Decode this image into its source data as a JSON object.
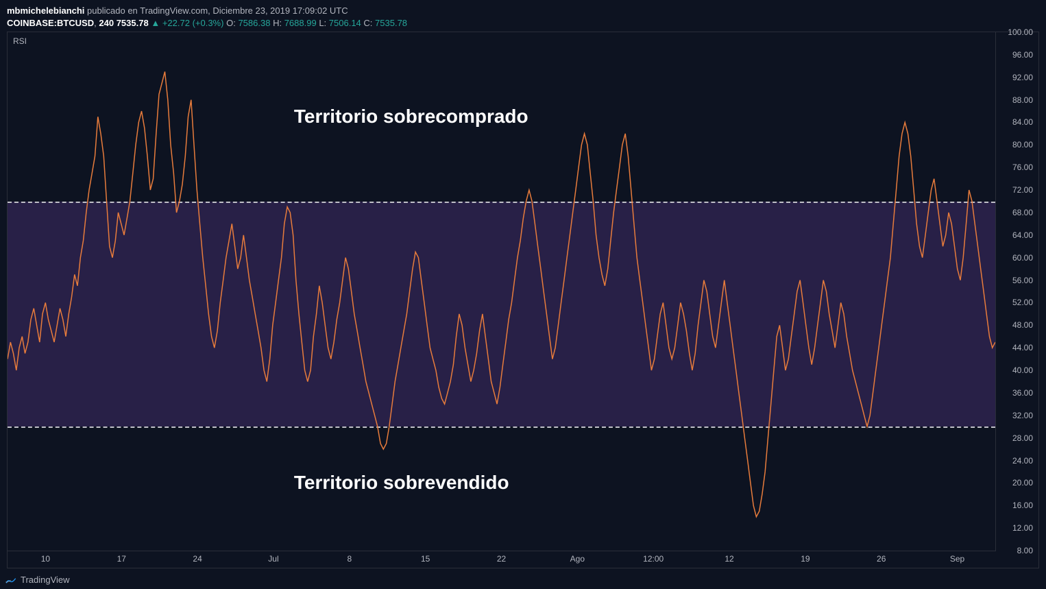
{
  "header": {
    "username": "mbmichelebianchi",
    "published_text": "publicado en TradingView.com, Diciembre 23, 2019 17:09:02 UTC",
    "symbol": "COINBASE:BTCUSD",
    "timeframe": "240",
    "last_price": "7535.78",
    "up_arrow": "▲",
    "change_abs": "+22.72",
    "change_pct": "(+0.3%)",
    "o_label": "O:",
    "o_val": "7586.38",
    "h_label": "H:",
    "h_val": "7688.99",
    "l_label": "L:",
    "l_val": "7506.14",
    "c_label": "C:",
    "c_val": "7535.78"
  },
  "indicator_label": "RSI",
  "annotations": {
    "overbought": "Territorio sobrecomprado",
    "oversold": "Territorio sobrevendido"
  },
  "rsi": {
    "type": "line",
    "line_color": "#e87c3c",
    "line_width": 1.5,
    "band_fill": "rgba(58,42,96,0.6)",
    "band_line_color": "#c0c0c8",
    "upper_band": 70,
    "lower_band": 30,
    "ylim": [
      8,
      100
    ],
    "ytick_step": 4,
    "background_color": "#0d1321",
    "series": [
      42,
      45,
      43,
      40,
      44,
      46,
      43,
      45,
      49,
      51,
      48,
      45,
      50,
      52,
      49,
      47,
      45,
      48,
      51,
      49,
      46,
      50,
      53,
      57,
      55,
      60,
      63,
      68,
      72,
      75,
      78,
      85,
      82,
      78,
      70,
      62,
      60,
      63,
      68,
      66,
      64,
      67,
      70,
      75,
      80,
      84,
      86,
      83,
      78,
      72,
      74,
      82,
      89,
      91,
      93,
      88,
      80,
      75,
      68,
      70,
      73,
      78,
      85,
      88,
      80,
      72,
      66,
      60,
      55,
      50,
      46,
      44,
      47,
      52,
      56,
      60,
      63,
      66,
      62,
      58,
      60,
      64,
      60,
      56,
      53,
      50,
      47,
      44,
      40,
      38,
      42,
      48,
      52,
      56,
      60,
      66,
      69,
      68,
      64,
      56,
      50,
      45,
      40,
      38,
      40,
      46,
      50,
      55,
      52,
      48,
      44,
      42,
      45,
      49,
      52,
      56,
      60,
      58,
      54,
      50,
      47,
      44,
      41,
      38,
      36,
      34,
      32,
      30,
      27,
      26,
      27,
      30,
      34,
      38,
      41,
      44,
      47,
      50,
      54,
      58,
      61,
      60,
      56,
      52,
      48,
      44,
      42,
      40,
      37,
      35,
      34,
      36,
      38,
      41,
      46,
      50,
      48,
      44,
      41,
      38,
      40,
      43,
      47,
      50,
      46,
      42,
      38,
      36,
      34,
      37,
      41,
      45,
      49,
      52,
      56,
      60,
      63,
      67,
      70,
      72,
      70,
      66,
      62,
      58,
      54,
      50,
      46,
      42,
      44,
      48,
      52,
      56,
      60,
      64,
      68,
      72,
      76,
      80,
      82,
      80,
      75,
      70,
      64,
      60,
      57,
      55,
      58,
      63,
      68,
      72,
      76,
      80,
      82,
      78,
      72,
      66,
      60,
      56,
      52,
      48,
      44,
      40,
      42,
      46,
      50,
      52,
      48,
      44,
      42,
      44,
      48,
      52,
      50,
      47,
      43,
      40,
      43,
      48,
      52,
      56,
      54,
      50,
      46,
      44,
      48,
      52,
      56,
      52,
      48,
      44,
      40,
      36,
      32,
      28,
      24,
      20,
      16,
      14,
      15,
      18,
      22,
      28,
      34,
      40,
      46,
      48,
      44,
      40,
      42,
      46,
      50,
      54,
      56,
      52,
      48,
      44,
      41,
      44,
      48,
      52,
      56,
      54,
      50,
      47,
      44,
      48,
      52,
      50,
      46,
      43,
      40,
      38,
      36,
      34,
      32,
      30,
      32,
      36,
      40,
      44,
      48,
      52,
      56,
      60,
      66,
      72,
      78,
      82,
      84,
      82,
      78,
      72,
      66,
      62,
      60,
      64,
      68,
      72,
      74,
      70,
      66,
      62,
      64,
      68,
      66,
      62,
      58,
      56,
      60,
      66,
      72,
      70,
      66,
      62,
      58,
      54,
      50,
      46,
      44,
      45
    ]
  },
  "yticks": [
    100,
    96,
    92,
    88,
    84,
    80,
    76,
    72,
    68,
    64,
    60,
    56,
    52,
    48,
    44,
    40,
    36,
    32,
    28,
    24,
    20,
    16,
    12,
    8
  ],
  "xticks": [
    "10",
    "17",
    "24",
    "Jul",
    "8",
    "15",
    "22",
    "Ago",
    "12:00",
    "12",
    "19",
    "26",
    "Sep"
  ],
  "footer": {
    "brand": "TradingView"
  }
}
